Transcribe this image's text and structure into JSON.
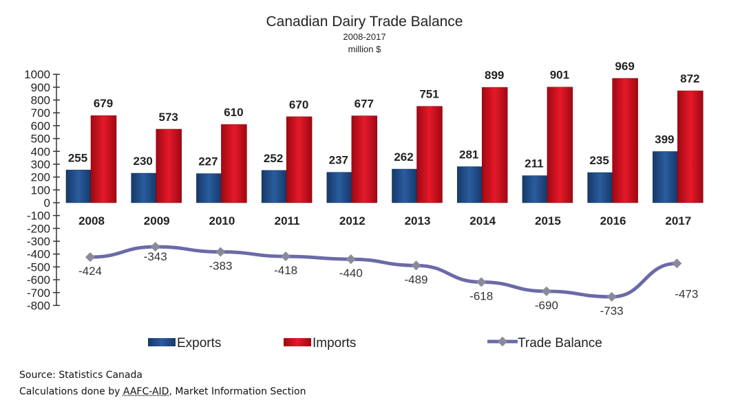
{
  "chart_data": {
    "type": "bar",
    "title": "Canadian Dairy Trade Balance",
    "subtitle": "2008-2017",
    "unit": "million $",
    "categories": [
      "2008",
      "2009",
      "2010",
      "2011",
      "2012",
      "2013",
      "2014",
      "2015",
      "2016",
      "2017"
    ],
    "series": [
      {
        "name": "Exports",
        "type": "bar",
        "color": "#1f4e8c",
        "values": [
          255,
          230,
          227,
          252,
          237,
          262,
          281,
          211,
          235,
          399
        ]
      },
      {
        "name": "Imports",
        "type": "bar",
        "color": "#d9101e",
        "values": [
          679,
          573,
          610,
          670,
          677,
          751,
          899,
          901,
          969,
          872
        ]
      },
      {
        "name": "Trade Balance",
        "type": "line",
        "color": "#6b6aa8",
        "values": [
          -424,
          -343,
          -383,
          -418,
          -440,
          -489,
          -618,
          -690,
          -733,
          -473
        ]
      }
    ],
    "ylim": [
      -800,
      1000
    ],
    "yticks": [
      1000,
      900,
      800,
      700,
      600,
      500,
      400,
      300,
      200,
      100,
      0,
      -100,
      -200,
      -300,
      -400,
      -500,
      -600,
      -700,
      -800
    ],
    "grid": false,
    "legend": "bottom"
  },
  "footer": {
    "source": "Source: Statistics Canada",
    "calc_prefix": "Calculations done by ",
    "calc_link": "AAFC-AID",
    "calc_suffix": ", Market Information Section"
  }
}
